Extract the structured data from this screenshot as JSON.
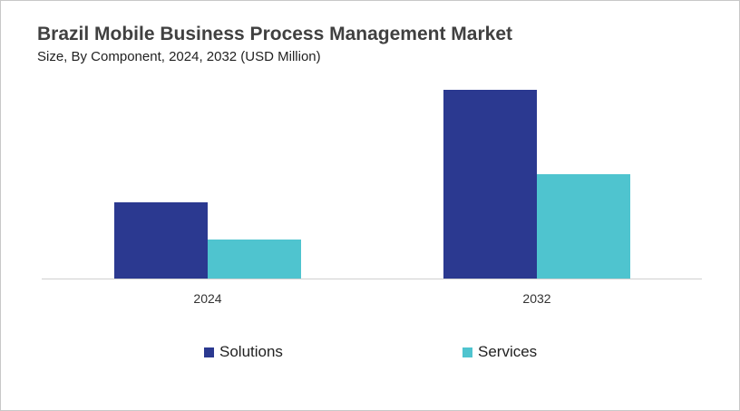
{
  "colors": {
    "Solutions": "#2b3990",
    "Services": "#4fc4cf",
    "border": "#c8c8c8"
  },
  "chart_data": {
    "type": "bar",
    "title": "Brazil Mobile Business Process Management Market",
    "subtitle": "Size, By Component, 2024, 2032 (USD Million)",
    "categories": [
      "2024",
      "2032"
    ],
    "series": [
      {
        "name": "Solutions",
        "values": [
          84,
          208
        ]
      },
      {
        "name": "Services",
        "values": [
          43,
          115
        ]
      }
    ],
    "ylim": [
      0,
      220
    ],
    "grid": false,
    "legend": "bottom",
    "xlabel": "",
    "ylabel": ""
  }
}
